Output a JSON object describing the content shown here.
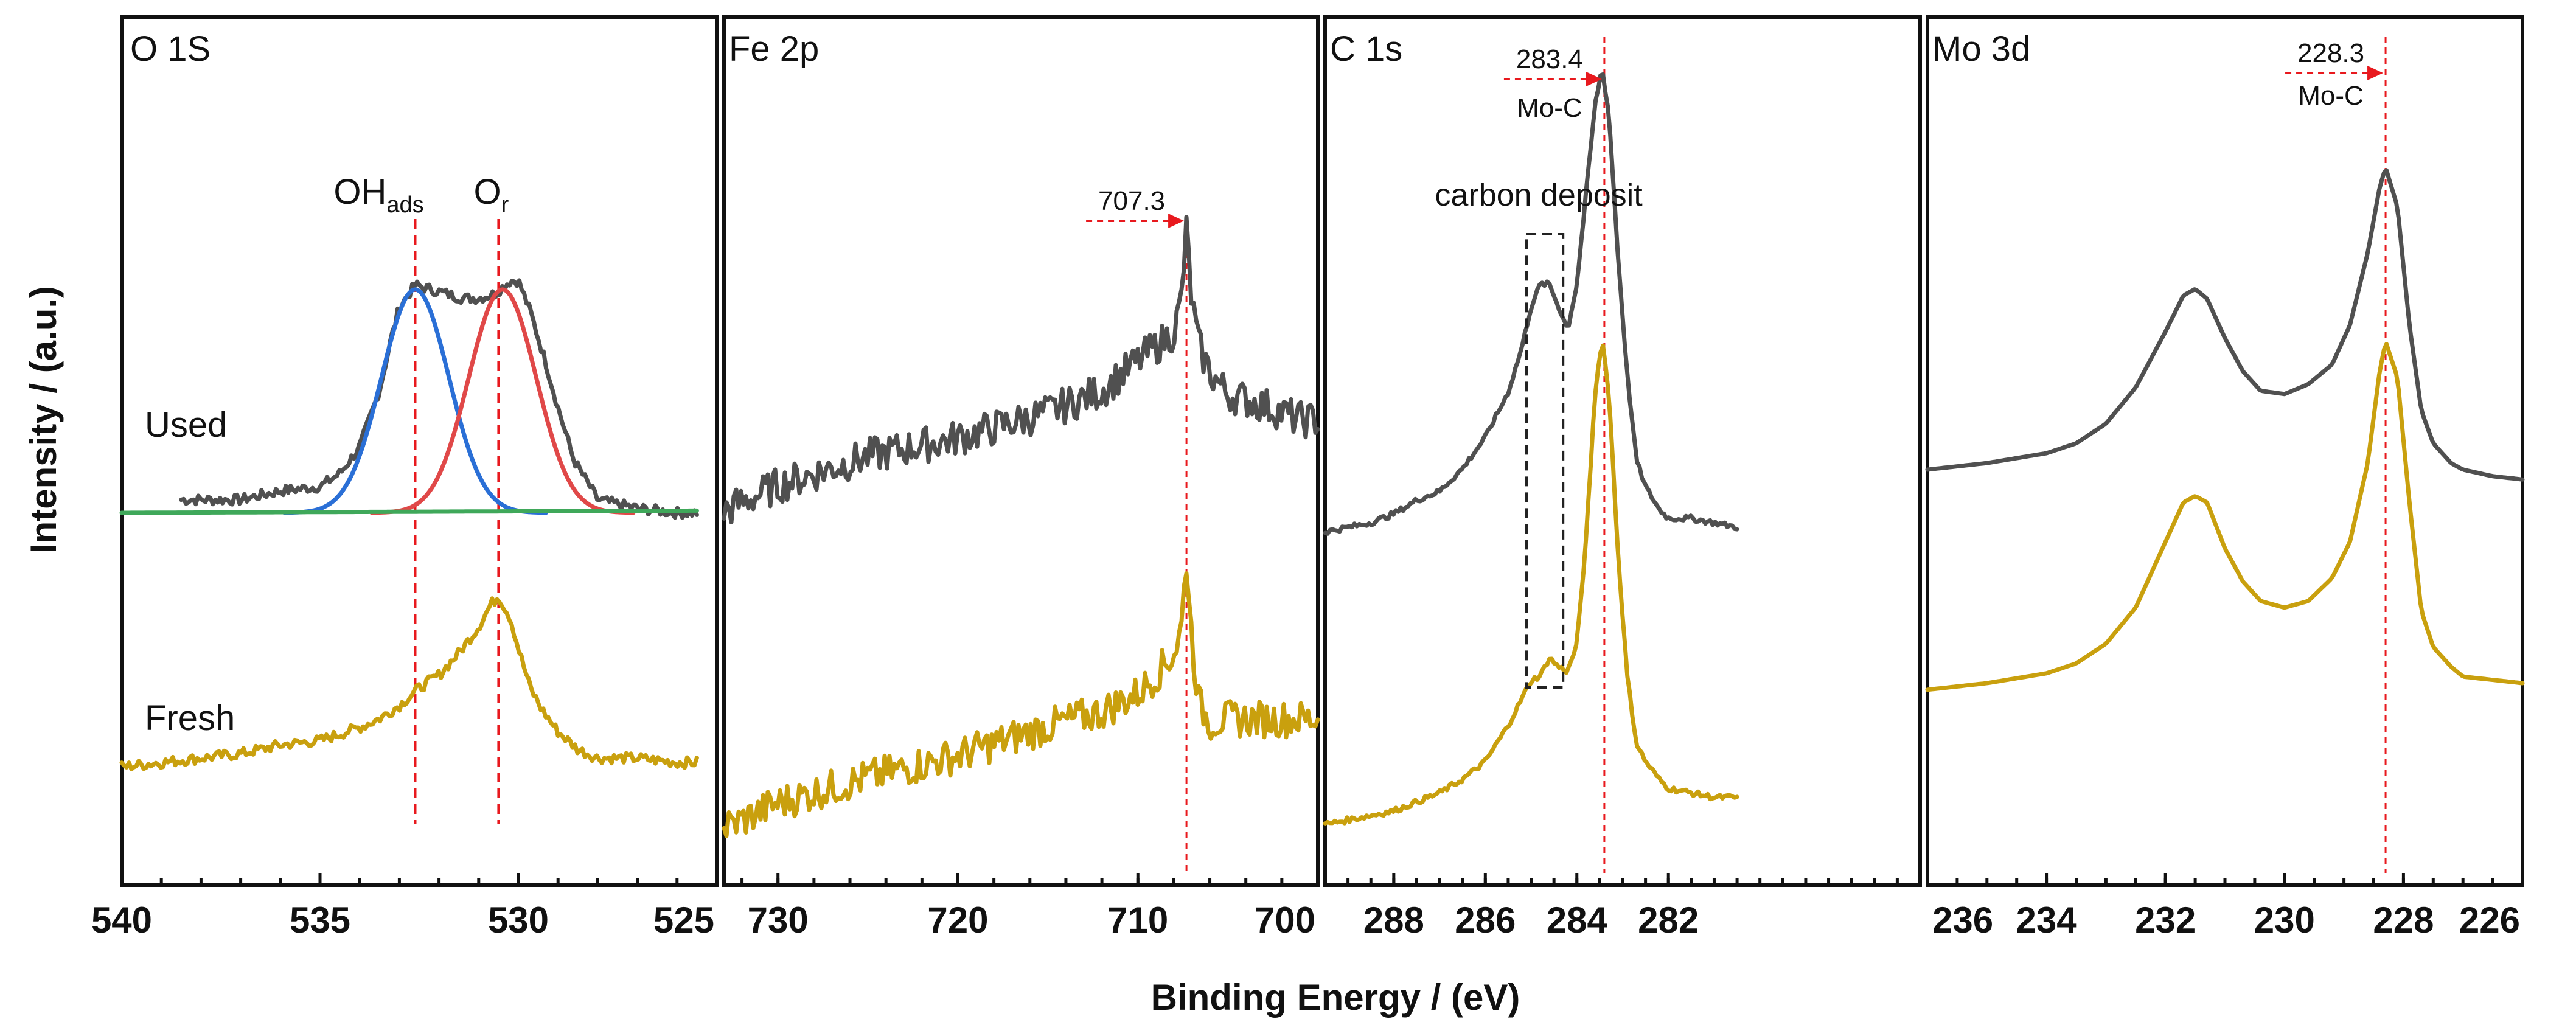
{
  "figure": {
    "xlabel": "Binding Energy / (eV)",
    "ylabel": "Intensity / (a.u.)"
  },
  "colors": {
    "used": "#505050",
    "fresh": "#c9a00e",
    "ohads_fit": "#2a6fd6",
    "or_fit": "#e04848",
    "baseline": "#3fa85a",
    "reference": "#e8191e"
  },
  "chart_data": [
    {
      "type": "line",
      "title": "O 1S",
      "xlabel": "Binding Energy / (eV)",
      "ylabel": "Intensity / (a.u.)",
      "xlim": [
        540,
        525
      ],
      "xticks": [
        "540",
        "535",
        "530",
        "525"
      ],
      "series_labels": {
        "used": "Used",
        "fresh": "Fresh"
      },
      "peak_labels": [
        {
          "text": "OH",
          "sub": "ads",
          "x": 532.6
        },
        {
          "text": "O",
          "sub": "r",
          "x": 530.5
        }
      ],
      "reference_lines": [
        532.6,
        530.5
      ],
      "series": [
        {
          "name": "Used",
          "x": [
            538.5,
            537,
            536,
            535,
            534.5,
            534,
            533.5,
            533.2,
            533,
            532.6,
            532.2,
            531.8,
            531.4,
            531,
            530.6,
            530.2,
            530,
            529.7,
            529.3,
            529,
            528.6,
            528.2,
            528,
            527.5,
            527,
            526,
            525.5
          ],
          "y": [
            0.03,
            0.03,
            0.05,
            0.06,
            0.09,
            0.15,
            0.28,
            0.4,
            0.47,
            0.52,
            0.51,
            0.5,
            0.49,
            0.49,
            0.5,
            0.53,
            0.53,
            0.46,
            0.34,
            0.24,
            0.12,
            0.06,
            0.03,
            0.02,
            0.01,
            0.0,
            0.0
          ]
        },
        {
          "name": "Fresh",
          "x": [
            540,
            539,
            538,
            537,
            536,
            535,
            534,
            533.5,
            533,
            532.5,
            532,
            531.5,
            531,
            530.7,
            530.5,
            530.2,
            530,
            529.7,
            529.4,
            529,
            528.5,
            528,
            527,
            526,
            525.5
          ],
          "y": [
            -0.58,
            -0.57,
            -0.56,
            -0.55,
            -0.53,
            -0.52,
            -0.49,
            -0.47,
            -0.44,
            -0.4,
            -0.37,
            -0.32,
            -0.26,
            -0.21,
            -0.19,
            -0.24,
            -0.31,
            -0.4,
            -0.45,
            -0.5,
            -0.54,
            -0.56,
            -0.56,
            -0.57,
            -0.57
          ]
        },
        {
          "name": "OHads fit",
          "center": 532.6,
          "height": 0.51,
          "sigma": 0.85
        },
        {
          "name": "Or fit",
          "center": 530.4,
          "height": 0.51,
          "sigma": 0.85
        },
        {
          "name": "Baseline",
          "x": [
            540,
            525.5
          ],
          "y": [
            0.0,
            0.005
          ]
        }
      ]
    },
    {
      "type": "line",
      "title": "Fe 2p",
      "xlim": [
        733,
        700
      ],
      "xticks": [
        "730",
        "720",
        "710",
        "700"
      ],
      "annotation": {
        "label": "707.3",
        "x": 707.3
      },
      "reference_lines": [
        707.3
      ],
      "series": [
        {
          "name": "Used",
          "x": [
            733,
            730,
            725,
            720,
            715,
            712,
            710,
            709,
            708,
            707.6,
            707.3,
            707,
            706.6,
            706,
            705,
            703,
            701,
            700
          ],
          "y": [
            -0.05,
            0.02,
            0.1,
            0.15,
            0.22,
            0.28,
            0.36,
            0.4,
            0.44,
            0.52,
            0.72,
            0.52,
            0.4,
            0.33,
            0.27,
            0.24,
            0.2,
            0.2
          ]
        },
        {
          "name": "Fresh",
          "x": [
            733,
            730,
            725,
            720,
            715,
            712,
            710,
            709,
            708,
            707.6,
            707.3,
            707,
            706.6,
            706,
            705,
            703,
            701,
            700
          ],
          "y": [
            -0.92,
            -0.85,
            -0.78,
            -0.72,
            -0.64,
            -0.6,
            -0.55,
            -0.5,
            -0.44,
            -0.38,
            -0.18,
            -0.4,
            -0.58,
            -0.63,
            -0.62,
            -0.62,
            -0.62,
            -0.62
          ]
        }
      ]
    },
    {
      "type": "line",
      "title": "C 1s",
      "xlim": [
        289.5,
        276.5
      ],
      "xticks": [
        "288",
        "286",
        "284",
        "282"
      ],
      "annotations": [
        {
          "label": "283.4",
          "sublabel": "Mo-C",
          "x": 283.4
        },
        {
          "label": "carbon deposit",
          "box_x": [
            285.1,
            284.3
          ]
        }
      ],
      "reference_lines": [
        283.4
      ],
      "series": [
        {
          "name": "Used",
          "x": [
            289.5,
            288.5,
            288,
            287.5,
            287,
            286.5,
            286,
            285.5,
            285.2,
            285,
            284.8,
            284.6,
            284.4,
            284.2,
            284,
            283.8,
            283.6,
            283.45,
            283.3,
            283.1,
            282.9,
            282.7,
            282.5,
            282.2,
            282,
            281.5,
            281,
            280.5
          ],
          "y": [
            0.17,
            0.19,
            0.21,
            0.24,
            0.26,
            0.31,
            0.38,
            0.48,
            0.58,
            0.67,
            0.72,
            0.72,
            0.67,
            0.62,
            0.72,
            0.92,
            1.12,
            1.2,
            1.1,
            0.78,
            0.52,
            0.33,
            0.27,
            0.22,
            0.2,
            0.2,
            0.19,
            0.18
          ]
        },
        {
          "name": "Fresh",
          "x": [
            289.5,
            288.5,
            288,
            287.5,
            287,
            286.5,
            286,
            285.5,
            285.2,
            285,
            284.8,
            284.6,
            284.4,
            284.2,
            284,
            283.8,
            283.6,
            283.45,
            283.3,
            283.1,
            282.9,
            282.7,
            282.5,
            282.2,
            282,
            281.5,
            281,
            280.5
          ],
          "y": [
            -0.48,
            -0.46,
            -0.45,
            -0.43,
            -0.41,
            -0.38,
            -0.34,
            -0.26,
            -0.2,
            -0.16,
            -0.15,
            -0.11,
            -0.13,
            -0.14,
            -0.08,
            0.15,
            0.48,
            0.6,
            0.48,
            0.12,
            -0.15,
            -0.3,
            -0.34,
            -0.38,
            -0.4,
            -0.41,
            -0.42,
            -0.42
          ]
        }
      ]
    },
    {
      "type": "line",
      "title": "Mo 3d",
      "xlim": [
        236,
        226
      ],
      "xticks": [
        "236",
        "234",
        "232",
        "230",
        "228",
        "226"
      ],
      "annotation": {
        "label": "228.3",
        "sublabel": "Mo-C",
        "x": 228.3
      },
      "reference_lines": [
        228.3
      ],
      "series": [
        {
          "name": "Used",
          "x": [
            236,
            235,
            234,
            233.5,
            233,
            232.5,
            232,
            231.7,
            231.5,
            231.3,
            231,
            230.7,
            230.4,
            230,
            229.6,
            229.2,
            228.9,
            228.6,
            228.4,
            228.3,
            228.1,
            227.9,
            227.7,
            227.5,
            227.2,
            227,
            226.5,
            226
          ],
          "y": [
            0.2,
            0.22,
            0.25,
            0.28,
            0.34,
            0.45,
            0.62,
            0.73,
            0.75,
            0.72,
            0.6,
            0.5,
            0.44,
            0.43,
            0.46,
            0.52,
            0.64,
            0.86,
            1.06,
            1.12,
            1.0,
            0.64,
            0.38,
            0.28,
            0.22,
            0.2,
            0.18,
            0.17
          ]
        },
        {
          "name": "Fresh",
          "x": [
            236,
            235,
            234,
            233.5,
            233,
            232.5,
            232,
            231.7,
            231.5,
            231.3,
            231,
            230.7,
            230.4,
            230,
            229.6,
            229.2,
            228.9,
            228.6,
            228.4,
            228.3,
            228.1,
            227.9,
            227.7,
            227.5,
            227.2,
            227,
            226.5,
            226
          ],
          "y": [
            -0.47,
            -0.45,
            -0.42,
            -0.39,
            -0.33,
            -0.22,
            -0.02,
            0.1,
            0.12,
            0.1,
            -0.04,
            -0.14,
            -0.2,
            -0.22,
            -0.2,
            -0.13,
            -0.02,
            0.22,
            0.5,
            0.59,
            0.48,
            0.1,
            -0.23,
            -0.34,
            -0.4,
            -0.43,
            -0.44,
            -0.45
          ]
        }
      ]
    }
  ]
}
